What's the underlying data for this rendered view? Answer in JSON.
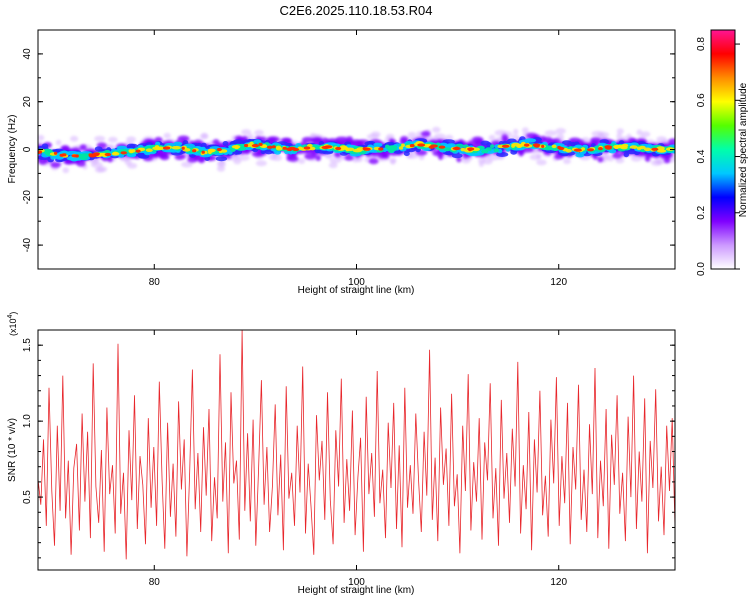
{
  "figure": {
    "title": "C2E6.2025.110.18.53.R04"
  },
  "chart_data": [
    {
      "type": "heatmap",
      "name": "spectrogram",
      "xlabel": "Height of straight line (km)",
      "ylabel": "Frequency (Hz)",
      "xlim": [
        68.5,
        131.5
      ],
      "ylim": [
        -50,
        50
      ],
      "xticks": [
        80,
        100,
        120
      ],
      "yticks": [
        -40,
        -20,
        0,
        20,
        40
      ],
      "band_center_hz": [
        -1,
        -2,
        -3,
        -2,
        -1,
        0,
        1,
        0,
        -1,
        0,
        2,
        1,
        0,
        1,
        1,
        0,
        0,
        1,
        2,
        1,
        0,
        0,
        1,
        2,
        1,
        0,
        0,
        1,
        1,
        0,
        0
      ],
      "colorbar": {
        "label": "Normalized spectral amplitude",
        "range": [
          0.0,
          0.85
        ],
        "ticks": [
          0.0,
          0.2,
          0.4,
          0.6,
          0.8
        ],
        "colors": [
          "#ffffff",
          "#cc99ff",
          "#7f00ff",
          "#0000ff",
          "#00c8ff",
          "#00ffaa",
          "#55ff00",
          "#ffff00",
          "#ff8c00",
          "#ff0000",
          "#ff1493"
        ]
      }
    },
    {
      "type": "line",
      "name": "snr",
      "xlabel": "Height of straight line (km)",
      "ylabel": "SNR (10 * v/v)",
      "y_multiplier_base": "(x10",
      "y_multiplier_exp": "4",
      "y_multiplier_close": ")",
      "xlim": [
        68.5,
        131.5
      ],
      "ylim": [
        0.02,
        1.6
      ],
      "xticks": [
        80,
        100,
        120
      ],
      "yticks": [
        0.5,
        1.0,
        1.5
      ],
      "ytick_labels": [
        "0.5",
        "1.0",
        "1.5"
      ],
      "color": "#e8262b",
      "series": [
        {
          "values": [
            0.62,
            0.45,
            0.88,
            0.31,
            1.22,
            0.54,
            0.18,
            0.97,
            0.41,
            1.3,
            0.36,
            0.74,
            0.12,
            0.69,
            0.85,
            0.28,
            1.05,
            0.47,
            0.93,
            0.23,
            1.38,
            0.57,
            0.33,
            0.81,
            0.14,
            1.09,
            0.52,
            0.71,
            0.26,
            1.51,
            0.39,
            0.66,
            0.09,
            0.94,
            0.48,
            1.17,
            0.29,
            0.77,
            0.58,
            0.19,
            1.02,
            0.43,
            0.83,
            0.31,
            1.26,
            0.61,
            0.16,
            0.99,
            0.37,
            0.72,
            0.24,
            1.13,
            0.55,
            0.88,
            0.11,
            0.67,
            1.34,
            0.42,
            0.79,
            0.27,
            0.96,
            0.51,
            1.08,
            0.21,
            0.63,
            0.36,
            1.44,
            0.47,
            0.86,
            0.13,
            1.19,
            0.59,
            0.74,
            0.22,
            1.6,
            0.41,
            0.92,
            0.34,
            1.01,
            0.18,
            0.69,
            1.27,
            0.45,
            0.83,
            0.27,
            0.57,
            1.11,
            0.38,
            0.78,
            0.15,
            1.23,
            0.49,
            0.66,
            0.31,
            0.97,
            0.53,
            1.36,
            0.26,
            0.72,
            0.44,
            0.12,
            1.04,
            0.61,
            0.87,
            0.35,
            1.19,
            0.48,
            0.19,
            0.94,
            0.57,
            1.28,
            0.33,
            0.75,
            0.41,
            1.07,
            0.25,
            0.63,
            0.89,
            0.14,
            1.16,
            0.52,
            0.79,
            0.37,
            1.33,
            0.46,
            0.68,
            0.23,
            0.99,
            0.56,
            1.12,
            0.29,
            0.84,
            0.17,
            1.22,
            0.43,
            0.71,
            0.39,
            1.05,
            0.62,
            0.27,
            0.93,
            0.51,
            1.47,
            0.35,
            0.76,
            0.21,
            1.09,
            0.58,
            0.82,
            0.31,
            1.18,
            0.44,
            0.65,
            0.13,
            0.97,
            0.54,
            1.31,
            0.28,
            0.73,
            0.47,
            1.02,
            0.22,
            0.86,
            0.61,
            1.25,
            0.36,
            0.69,
            0.18,
            1.14,
            0.49,
            0.79,
            0.33,
            0.95,
            0.57,
            1.39,
            0.26,
            0.71,
            0.42,
            1.06,
            0.15,
            0.88,
            0.53,
            1.2,
            0.38,
            0.64,
            0.24,
            1.01,
            0.59,
            1.29,
            0.31,
            0.77,
            0.46,
            1.12,
            0.19,
            0.83,
            0.55,
            1.24,
            0.35,
            0.68,
            0.27,
            0.98,
            0.52,
            1.35,
            0.23,
            0.74,
            0.44,
            1.08,
            0.16,
            0.91,
            0.58,
            1.17,
            0.39,
            0.66,
            0.21,
            1.03,
            0.5,
            1.3,
            0.29,
            0.8,
            0.47,
            1.15,
            0.13,
            0.87,
            0.56,
            1.21,
            0.34,
            0.7,
            0.25,
            0.97,
            0.54,
            1.02,
            0.3
          ]
        }
      ]
    }
  ]
}
